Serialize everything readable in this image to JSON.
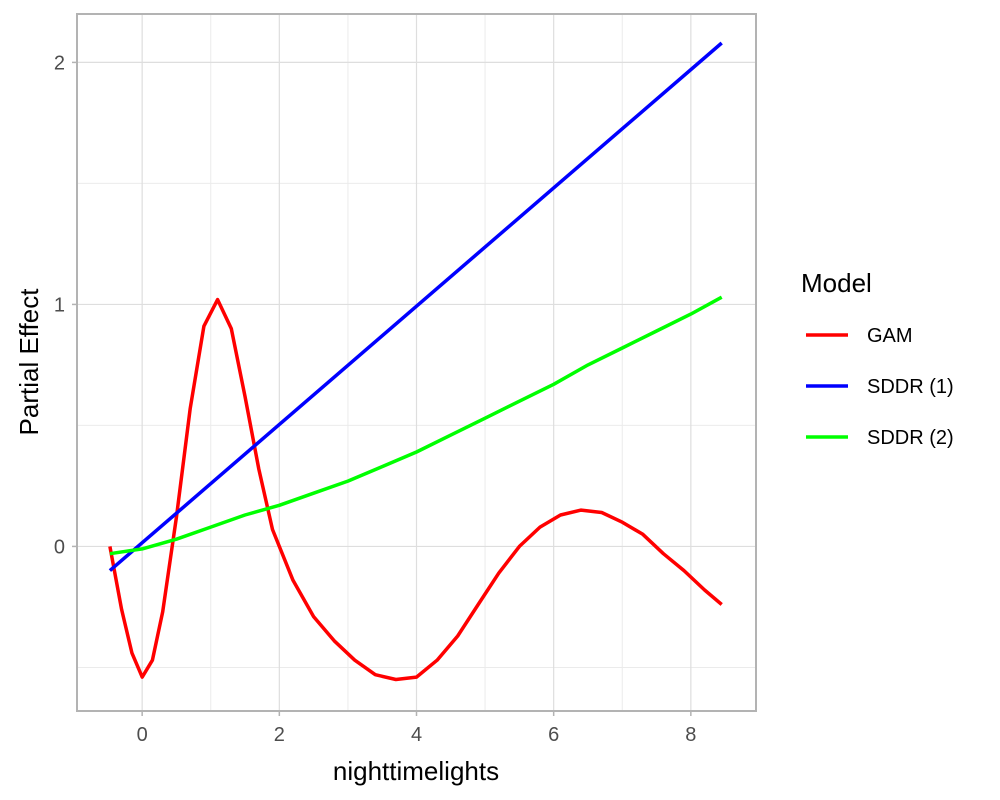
{
  "chart_data": {
    "type": "line",
    "xlabel": "nighttimelights",
    "ylabel": "Partial Effect",
    "xlim": [
      -0.95,
      8.95
    ],
    "ylim": [
      -0.68,
      2.2
    ],
    "x_ticks": [
      0,
      2,
      4,
      6,
      8
    ],
    "x_tick_labels": [
      "0",
      "2",
      "4",
      "6",
      "8"
    ],
    "y_ticks": [
      0,
      1,
      2
    ],
    "y_tick_labels": [
      "0",
      "1",
      "2"
    ],
    "grid": true,
    "legend": {
      "title": "Model",
      "position": "right"
    },
    "series": [
      {
        "name": "GAM",
        "color": "#ff0000",
        "x": [
          -0.47,
          -0.3,
          -0.15,
          0.0,
          0.15,
          0.3,
          0.5,
          0.7,
          0.9,
          1.1,
          1.3,
          1.5,
          1.7,
          1.9,
          2.2,
          2.5,
          2.8,
          3.1,
          3.4,
          3.7,
          4.0,
          4.3,
          4.6,
          4.9,
          5.2,
          5.5,
          5.8,
          6.1,
          6.4,
          6.7,
          7.0,
          7.3,
          7.6,
          7.9,
          8.2,
          8.45
        ],
        "y": [
          0.0,
          -0.26,
          -0.44,
          -0.54,
          -0.47,
          -0.27,
          0.12,
          0.57,
          0.91,
          1.02,
          0.9,
          0.62,
          0.32,
          0.07,
          -0.14,
          -0.29,
          -0.39,
          -0.47,
          -0.53,
          -0.55,
          -0.54,
          -0.47,
          -0.37,
          -0.24,
          -0.11,
          0.0,
          0.08,
          0.13,
          0.15,
          0.14,
          0.1,
          0.05,
          -0.03,
          -0.1,
          -0.18,
          -0.24
        ]
      },
      {
        "name": "SDDR (1)",
        "color": "#0000ff",
        "x": [
          -0.47,
          8.45
        ],
        "y": [
          -0.1,
          2.08
        ]
      },
      {
        "name": "SDDR (2)",
        "color": "#00ff00",
        "x": [
          -0.47,
          0.0,
          0.5,
          1.0,
          1.5,
          2.0,
          2.5,
          3.0,
          3.5,
          4.0,
          4.5,
          5.0,
          5.5,
          6.0,
          6.5,
          7.0,
          7.5,
          8.0,
          8.45
        ],
        "y": [
          -0.03,
          -0.01,
          0.03,
          0.08,
          0.13,
          0.17,
          0.22,
          0.27,
          0.33,
          0.39,
          0.46,
          0.53,
          0.6,
          0.67,
          0.75,
          0.82,
          0.89,
          0.96,
          1.03
        ]
      }
    ]
  }
}
